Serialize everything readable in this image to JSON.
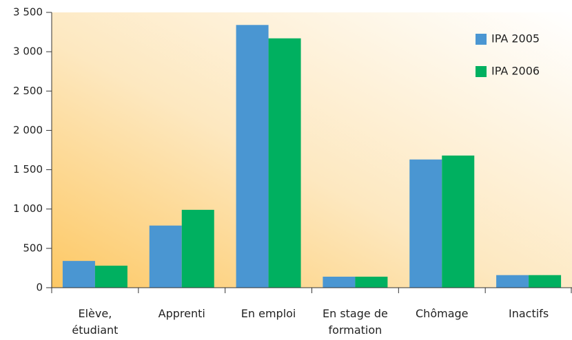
{
  "chart_data": {
    "type": "bar",
    "categories": [
      "Elève,\nétudiant",
      "Apprenti",
      "En emploi",
      "En stage de\nformation",
      "Chômage",
      "Inactifs"
    ],
    "series": [
      {
        "name": "IPA 2005",
        "color": "#4a96d2",
        "values": [
          340,
          790,
          3340,
          140,
          1630,
          160
        ]
      },
      {
        "name": "IPA 2006",
        "color": "#00b060",
        "values": [
          280,
          990,
          3170,
          140,
          1680,
          160
        ]
      }
    ],
    "ylim": [
      0,
      3500
    ],
    "yticks": [
      0,
      500,
      {
        "value": 1000,
        "label": "1 000"
      },
      {
        "value": 1500,
        "label": "1 500"
      },
      {
        "value": 2000,
        "label": "2 000"
      },
      {
        "value": 2500,
        "label": "2 500"
      },
      {
        "value": 3000,
        "label": "3 000"
      },
      {
        "value": 3500,
        "label": "3 500"
      }
    ],
    "grid": false,
    "legend": "top-right"
  }
}
